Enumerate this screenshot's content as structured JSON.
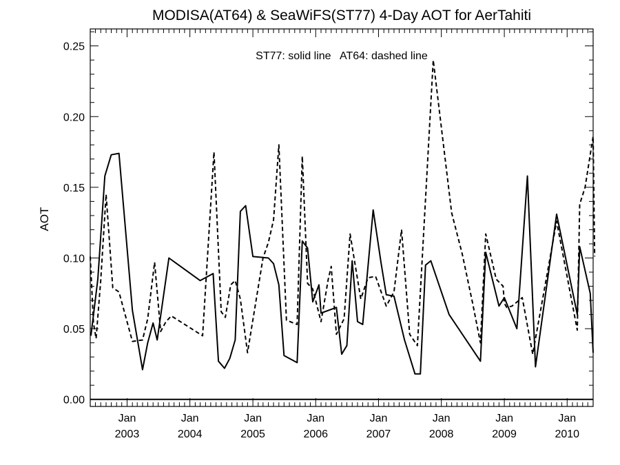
{
  "chart_data": {
    "type": "line",
    "title": "MODISA(AT64) & SeaWiFS(ST77) 4-Day AOT for AerTahiti",
    "ylabel": "AOT",
    "xlabel": "",
    "annotation": "ST77: solid line   AT64: dashed line",
    "ylim": [
      -0.005,
      0.262
    ],
    "xlim": [
      "2002-06-01",
      "2010-06-01"
    ],
    "yticks": [
      "0.00",
      "0.05",
      "0.10",
      "0.15",
      "0.20",
      "0.25"
    ],
    "xticks": [
      {
        "top": "Jan",
        "bottom": "2003",
        "date": "2003-01-01"
      },
      {
        "top": "Jan",
        "bottom": "2004",
        "date": "2004-01-01"
      },
      {
        "top": "Jan",
        "bottom": "2005",
        "date": "2005-01-01"
      },
      {
        "top": "Jan",
        "bottom": "2006",
        "date": "2006-01-01"
      },
      {
        "top": "Jan",
        "bottom": "2007",
        "date": "2007-01-01"
      },
      {
        "top": "Jan",
        "bottom": "2008",
        "date": "2008-01-01"
      },
      {
        "top": "Jan",
        "bottom": "2009",
        "date": "2009-01-01"
      },
      {
        "top": "Jan",
        "bottom": "2010",
        "date": "2010-01-01"
      }
    ],
    "series": [
      {
        "name": "ST77",
        "style": "solid",
        "color": "#000000",
        "points": [
          [
            "2002-06-05",
            0.045
          ],
          [
            "2002-07-15",
            0.085
          ],
          [
            "2002-08-25",
            0.158
          ],
          [
            "2002-10-01",
            0.173
          ],
          [
            "2002-11-15",
            0.174
          ],
          [
            "2003-02-01",
            0.063
          ],
          [
            "2003-04-01",
            0.021
          ],
          [
            "2003-05-01",
            0.04
          ],
          [
            "2003-06-01",
            0.054
          ],
          [
            "2003-06-25",
            0.042
          ],
          [
            "2003-09-01",
            0.1
          ],
          [
            "2004-03-01",
            0.084
          ],
          [
            "2004-05-15",
            0.089
          ],
          [
            "2004-06-15",
            0.027
          ],
          [
            "2004-07-20",
            0.022
          ],
          [
            "2004-08-20",
            0.029
          ],
          [
            "2004-09-20",
            0.042
          ],
          [
            "2004-10-20",
            0.133
          ],
          [
            "2004-11-20",
            0.137
          ],
          [
            "2005-01-01",
            0.101
          ],
          [
            "2005-04-01",
            0.1
          ],
          [
            "2005-05-01",
            0.096
          ],
          [
            "2005-06-01",
            0.081
          ],
          [
            "2005-07-01",
            0.031
          ],
          [
            "2005-09-15",
            0.026
          ],
          [
            "2005-10-15",
            0.112
          ],
          [
            "2005-11-15",
            0.107
          ],
          [
            "2005-12-15",
            0.069
          ],
          [
            "2006-01-20",
            0.081
          ],
          [
            "2006-02-01",
            0.061
          ],
          [
            "2006-05-01",
            0.065
          ],
          [
            "2006-06-01",
            0.032
          ],
          [
            "2006-07-01",
            0.038
          ],
          [
            "2006-08-01",
            0.098
          ],
          [
            "2006-09-01",
            0.055
          ],
          [
            "2006-10-01",
            0.053
          ],
          [
            "2006-12-01",
            0.134
          ],
          [
            "2007-01-15",
            0.097
          ],
          [
            "2007-02-15",
            0.074
          ],
          [
            "2007-04-01",
            0.073
          ],
          [
            "2007-06-01",
            0.042
          ],
          [
            "2007-08-01",
            0.018
          ],
          [
            "2007-09-01",
            0.018
          ],
          [
            "2007-10-01",
            0.095
          ],
          [
            "2007-11-01",
            0.098
          ],
          [
            "2008-02-15",
            0.06
          ],
          [
            "2008-08-15",
            0.027
          ],
          [
            "2008-09-15",
            0.104
          ],
          [
            "2008-12-01",
            0.066
          ],
          [
            "2009-01-01",
            0.072
          ],
          [
            "2009-03-15",
            0.05
          ],
          [
            "2009-05-15",
            0.158
          ],
          [
            "2009-07-01",
            0.023
          ],
          [
            "2009-11-01",
            0.131
          ],
          [
            "2010-03-01",
            0.06
          ],
          [
            "2010-03-15",
            0.108
          ],
          [
            "2010-05-15",
            0.075
          ],
          [
            "2010-06-01",
            0.033
          ]
        ]
      },
      {
        "name": "AT64",
        "style": "dashed",
        "color": "#000000",
        "points": [
          [
            "2002-06-01",
            0.101
          ],
          [
            "2002-06-20",
            0.054
          ],
          [
            "2002-07-05",
            0.043
          ],
          [
            "2002-08-01",
            0.084
          ],
          [
            "2002-09-01",
            0.145
          ],
          [
            "2002-10-10",
            0.079
          ],
          [
            "2002-11-15",
            0.076
          ],
          [
            "2003-02-01",
            0.041
          ],
          [
            "2003-04-01",
            0.042
          ],
          [
            "2003-05-01",
            0.057
          ],
          [
            "2003-06-10",
            0.097
          ],
          [
            "2003-07-15",
            0.048
          ],
          [
            "2003-08-15",
            0.055
          ],
          [
            "2003-09-15",
            0.059
          ],
          [
            "2004-03-15",
            0.045
          ],
          [
            "2004-05-20",
            0.175
          ],
          [
            "2004-07-01",
            0.062
          ],
          [
            "2004-07-25",
            0.058
          ],
          [
            "2004-08-25",
            0.081
          ],
          [
            "2004-09-20",
            0.084
          ],
          [
            "2004-10-20",
            0.071
          ],
          [
            "2004-12-01",
            0.033
          ],
          [
            "2005-03-01",
            0.1
          ],
          [
            "2005-04-01",
            0.111
          ],
          [
            "2005-05-01",
            0.127
          ],
          [
            "2005-06-01",
            0.18
          ],
          [
            "2005-07-15",
            0.056
          ],
          [
            "2005-09-15",
            0.053
          ],
          [
            "2005-10-15",
            0.172
          ],
          [
            "2005-11-15",
            0.082
          ],
          [
            "2005-12-15",
            0.078
          ],
          [
            "2006-02-01",
            0.055
          ],
          [
            "2006-03-15",
            0.085
          ],
          [
            "2006-04-01",
            0.094
          ],
          [
            "2006-05-01",
            0.046
          ],
          [
            "2006-06-15",
            0.057
          ],
          [
            "2006-07-20",
            0.117
          ],
          [
            "2006-09-20",
            0.071
          ],
          [
            "2006-11-01",
            0.086
          ],
          [
            "2006-12-15",
            0.087
          ],
          [
            "2007-02-15",
            0.066
          ],
          [
            "2007-04-01",
            0.076
          ],
          [
            "2007-05-15",
            0.12
          ],
          [
            "2007-07-01",
            0.046
          ],
          [
            "2007-08-15",
            0.038
          ],
          [
            "2007-11-15",
            0.24
          ],
          [
            "2008-03-01",
            0.132
          ],
          [
            "2008-05-01",
            0.103
          ],
          [
            "2008-07-01",
            0.068
          ],
          [
            "2008-08-15",
            0.04
          ],
          [
            "2008-09-15",
            0.117
          ],
          [
            "2008-11-15",
            0.085
          ],
          [
            "2008-12-25",
            0.08
          ],
          [
            "2009-01-01",
            0.068
          ],
          [
            "2009-01-15",
            0.065
          ],
          [
            "2009-02-15",
            0.066
          ],
          [
            "2009-04-15",
            0.072
          ],
          [
            "2009-06-15",
            0.032
          ],
          [
            "2009-11-01",
            0.126
          ],
          [
            "2010-03-01",
            0.049
          ],
          [
            "2010-03-15",
            0.138
          ],
          [
            "2010-04-15",
            0.15
          ],
          [
            "2010-06-01",
            0.186
          ],
          [
            "2010-06-10",
            0.101
          ]
        ]
      }
    ]
  }
}
